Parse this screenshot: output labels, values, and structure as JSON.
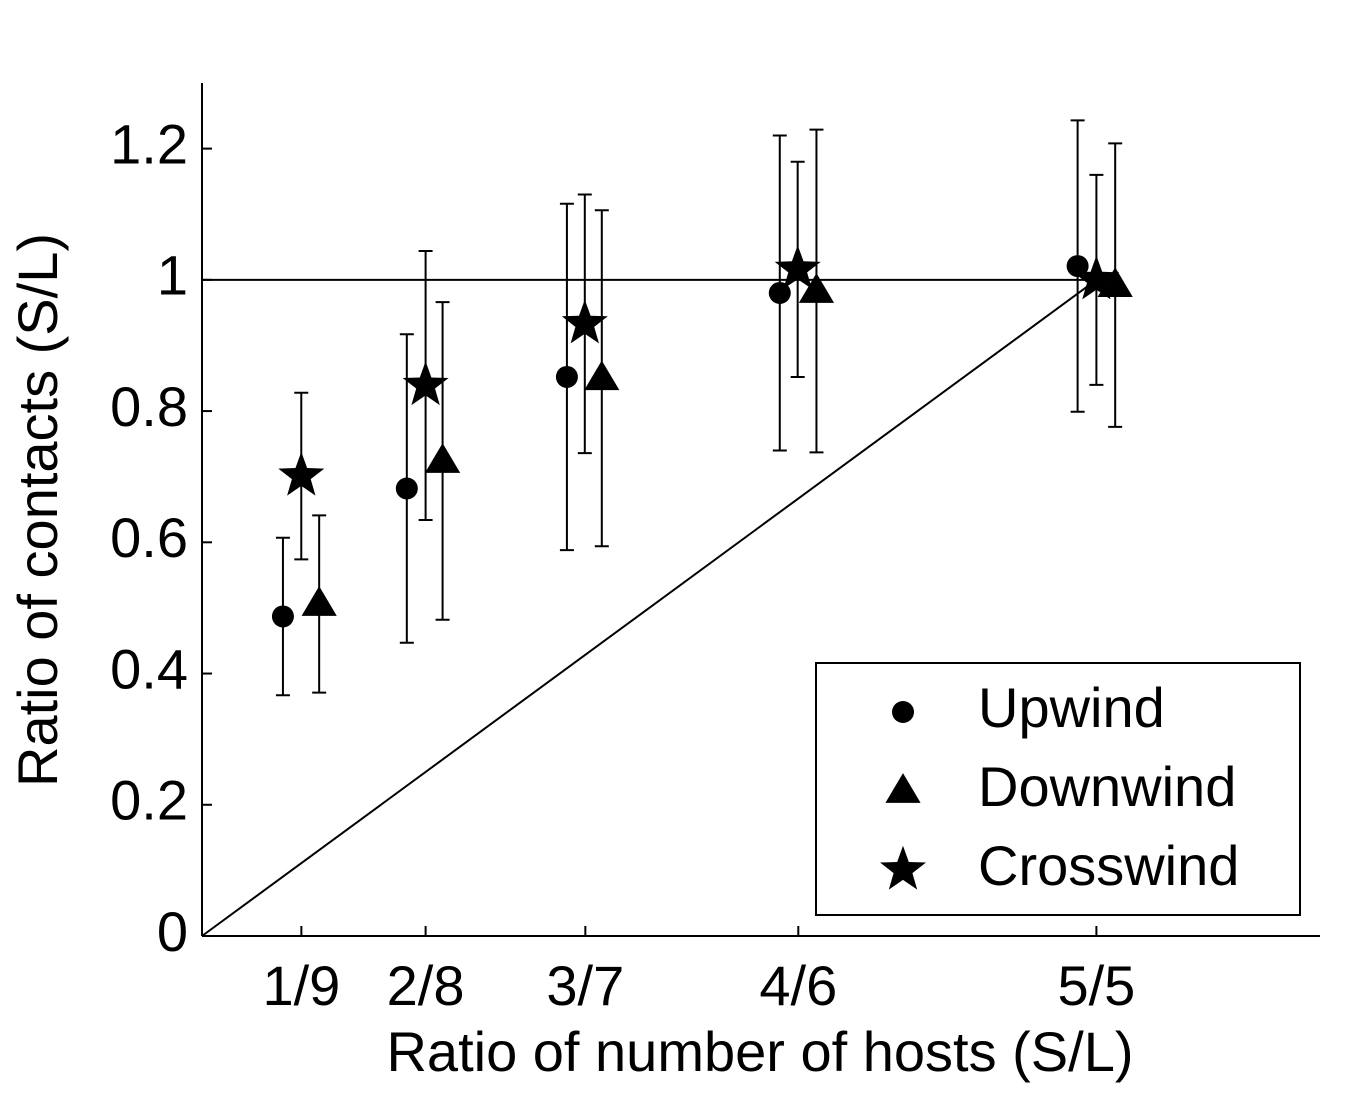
{
  "chart_data": {
    "type": "scatter",
    "xlabel": "Ratio of number of hosts (S/L)",
    "ylabel": "Ratio of contacts (S/L)",
    "xlim": [
      0,
      1.25
    ],
    "ylim": [
      0,
      1.3
    ],
    "xticks": [
      {
        "value": 0.1111,
        "label": "1/9"
      },
      {
        "value": 0.25,
        "label": "2/8"
      },
      {
        "value": 0.4286,
        "label": "3/7"
      },
      {
        "value": 0.6667,
        "label": "4/6"
      },
      {
        "value": 1,
        "label": "5/5"
      }
    ],
    "yticks": [
      0,
      0.2,
      0.4,
      0.6,
      0.8,
      1,
      1.2
    ],
    "legend": "lower right",
    "reference_lines": [
      {
        "x": [
          0,
          1
        ],
        "values": [
          1,
          1
        ]
      },
      {
        "x": [
          0,
          1
        ],
        "values": [
          0,
          1
        ]
      }
    ],
    "series": [
      {
        "name": "Upwind",
        "marker": "circle",
        "color": "#000000",
        "x": [
          0.0905,
          0.229,
          0.408,
          0.646,
          0.979
        ],
        "values": [
          0.487,
          0.682,
          0.852,
          0.98,
          1.021
        ],
        "errors": [
          0.12,
          0.235,
          0.264,
          0.24,
          0.222
        ]
      },
      {
        "name": "Downwind",
        "marker": "triangle",
        "color": "#000000",
        "x": [
          0.131,
          0.269,
          0.447,
          0.687,
          1.021
        ],
        "values": [
          0.506,
          0.724,
          0.85,
          0.983,
          0.992
        ],
        "errors": [
          0.135,
          0.242,
          0.256,
          0.246,
          0.216
        ]
      },
      {
        "name": "Crosswind",
        "marker": "star",
        "color": "#000000",
        "x": [
          0.111,
          0.25,
          0.428,
          0.666,
          1.0
        ],
        "values": [
          0.701,
          0.839,
          0.933,
          1.016,
          1.0
        ],
        "errors": [
          0.127,
          0.205,
          0.197,
          0.164,
          0.16
        ]
      }
    ]
  }
}
